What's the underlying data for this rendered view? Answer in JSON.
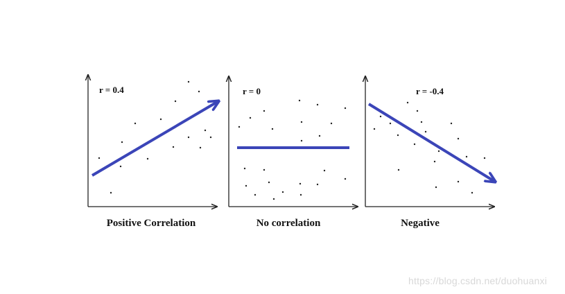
{
  "panels": [
    {
      "id": "positive",
      "r_label": "r =  0.4",
      "caption": "Positive Correlation",
      "trend": "positive"
    },
    {
      "id": "none",
      "r_label": "r = 0",
      "caption": "No correlation",
      "trend": "none"
    },
    {
      "id": "negative",
      "r_label": "r = -0.4",
      "caption": "Negative",
      "trend": "negative"
    }
  ],
  "colors": {
    "trend_line": "#3b45b8",
    "axis": "#222222",
    "dots": "#222222"
  },
  "watermark": "https://blog.csdn.net/duohuanxi"
}
